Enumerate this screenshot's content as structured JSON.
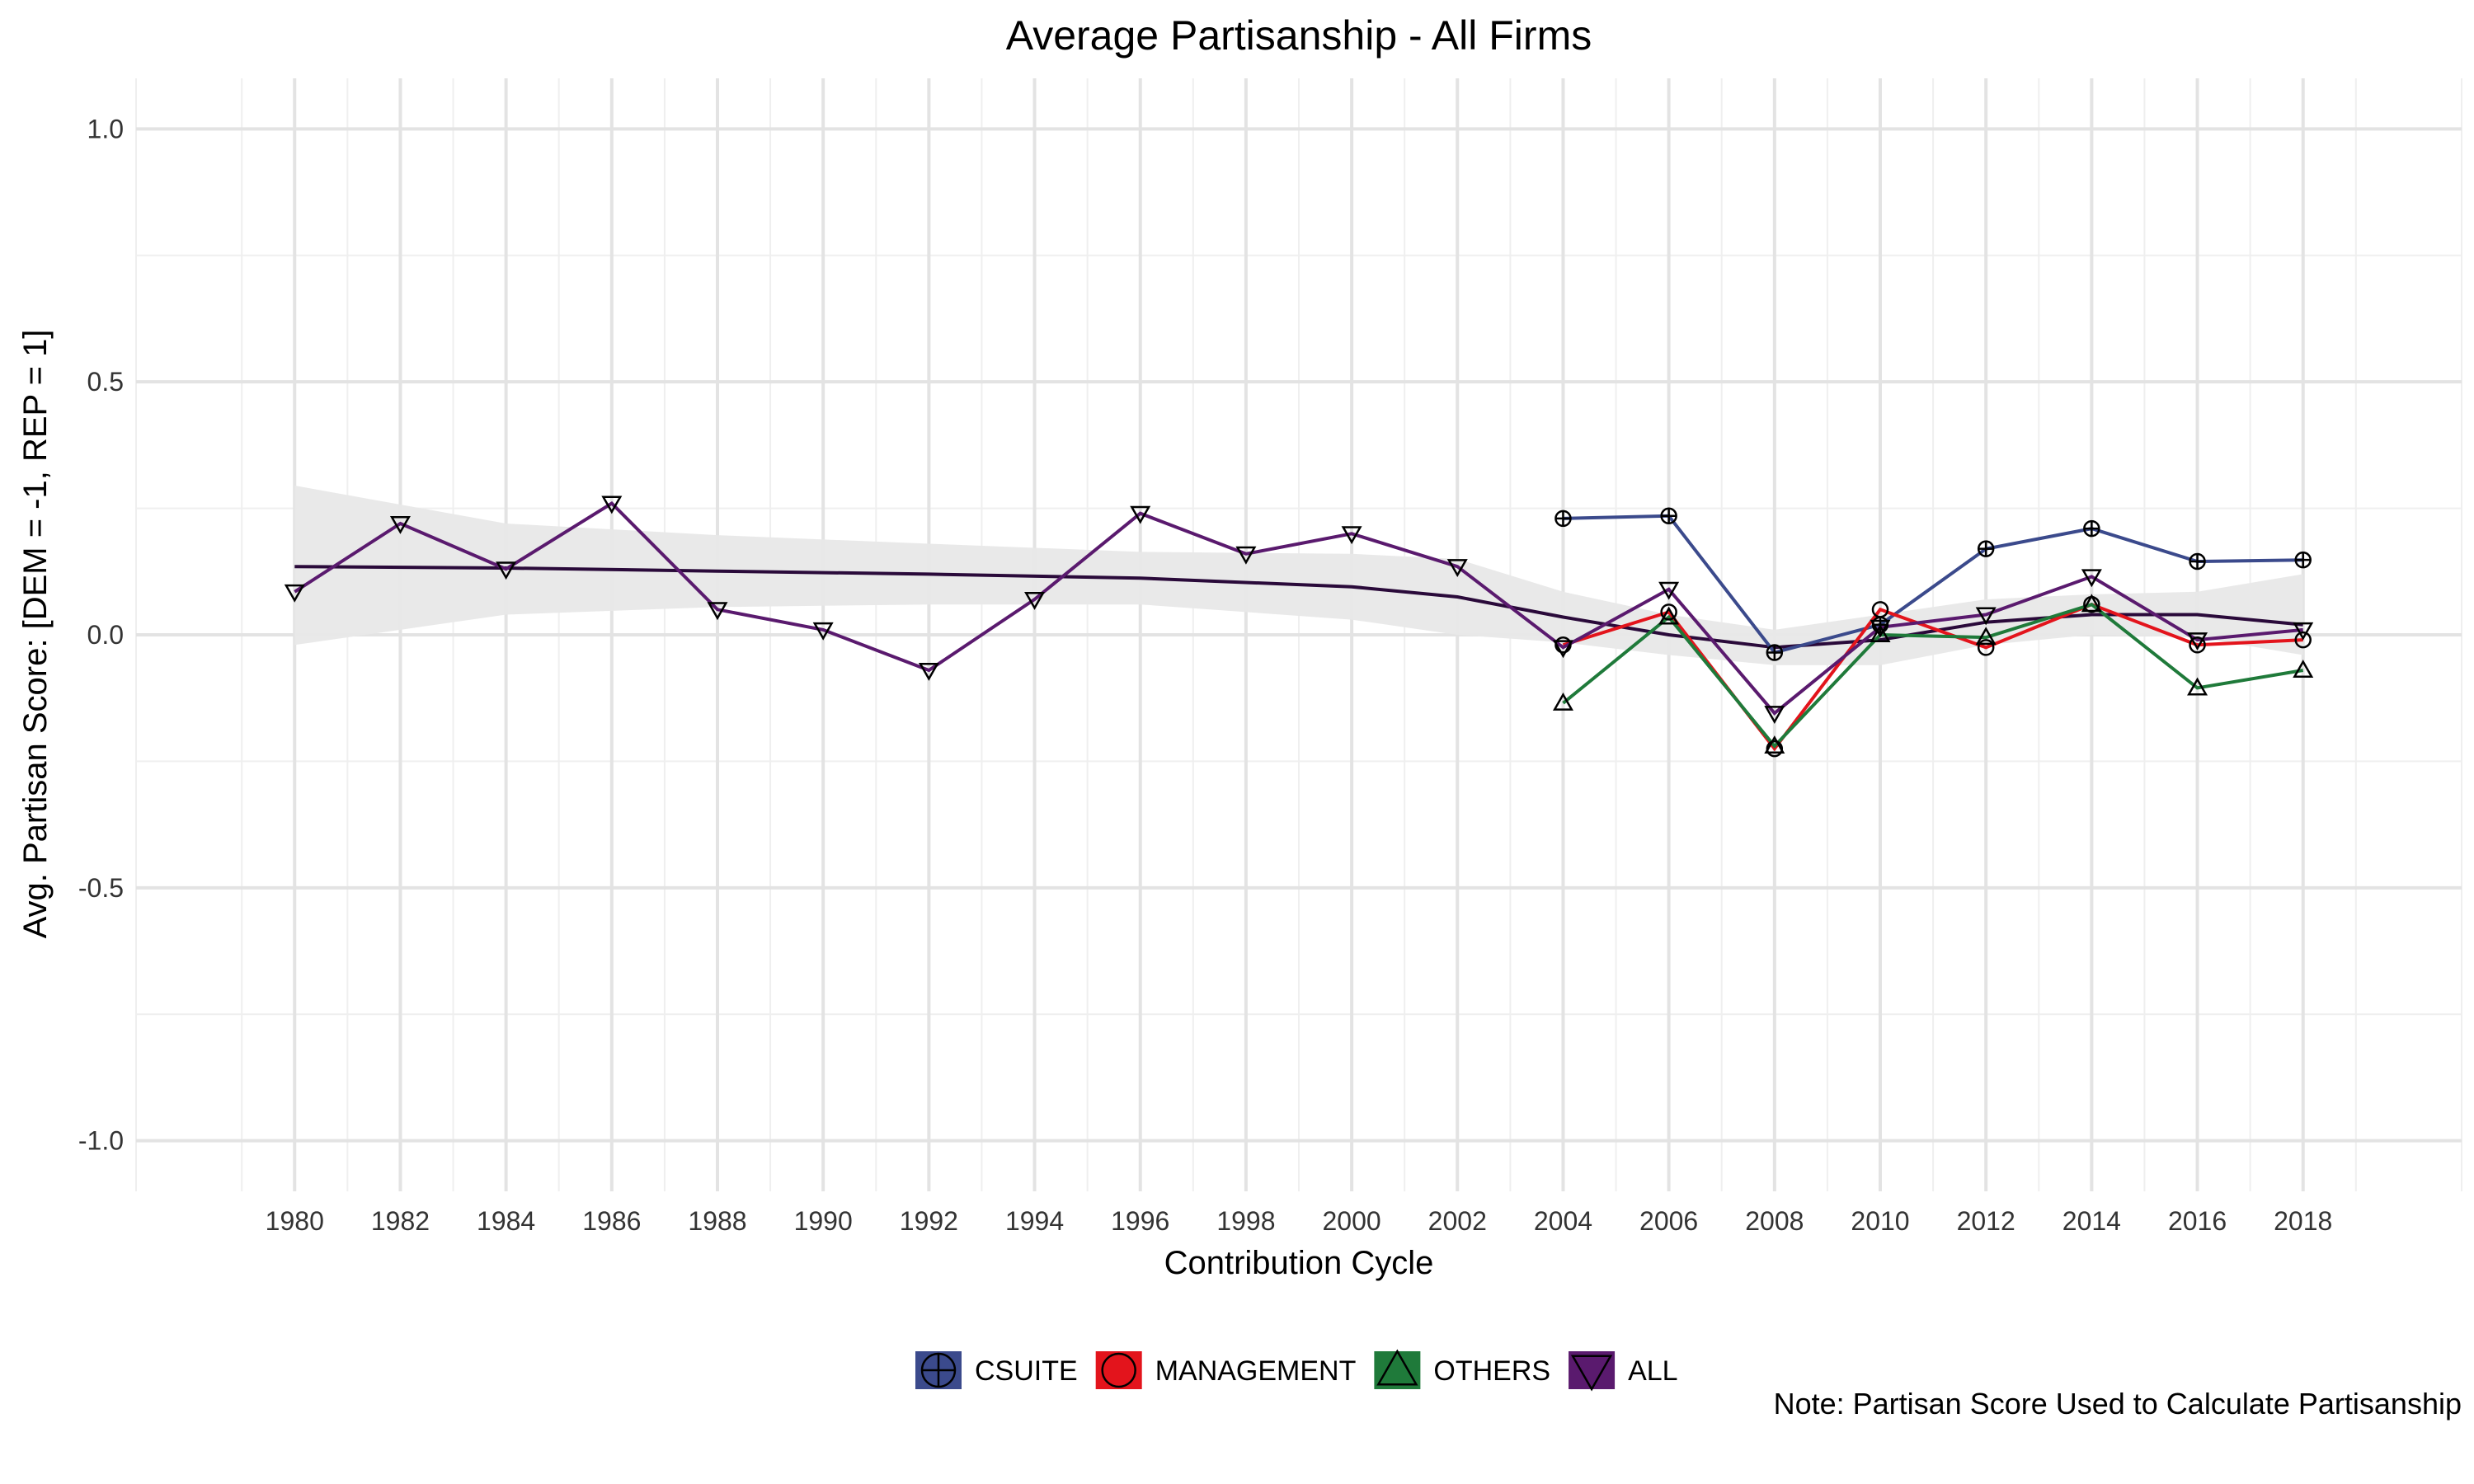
{
  "chart_data": {
    "type": "line",
    "title": "Average Partisanship - All Firms",
    "xlabel": "Contribution Cycle",
    "ylabel": "Avg. Partisan Score: [DEM = -1, REP = 1]",
    "caption": "Note: Partisan Score Used to Calculate Partisanship",
    "xlim": [
      1977,
      2021
    ],
    "ylim": [
      -1.1,
      1.1
    ],
    "x_ticks": [
      1980,
      1982,
      1984,
      1986,
      1988,
      1990,
      1992,
      1994,
      1996,
      1998,
      2000,
      2002,
      2004,
      2006,
      2008,
      2010,
      2012,
      2014,
      2016,
      2018
    ],
    "x_tick_labels": [
      "1980",
      "1982",
      "1984",
      "1986",
      "1988",
      "1990",
      "1992",
      "1994",
      "1996",
      "1998",
      "2000",
      "2002",
      "2004",
      "2006",
      "2008",
      "2010",
      "2012",
      "2014",
      "2016",
      "2018"
    ],
    "y_ticks": [
      -1.0,
      -0.5,
      0.0,
      0.5,
      1.0
    ],
    "y_tick_labels": [
      "-1.0",
      "-0.5",
      "0.0",
      "0.5",
      "1.0"
    ],
    "grid": true,
    "legend_position": "bottom",
    "series": [
      {
        "name": "CSUITE",
        "color": "#3B4A8C",
        "marker": "circle-plus",
        "x": [
          2004,
          2006,
          2008,
          2010,
          2012,
          2014,
          2016,
          2018
        ],
        "y": [
          0.23,
          0.235,
          -0.035,
          0.02,
          0.17,
          0.21,
          0.145,
          0.148
        ]
      },
      {
        "name": "MANAGEMENT",
        "color": "#E3141C",
        "marker": "circle",
        "x": [
          2004,
          2006,
          2008,
          2010,
          2012,
          2014,
          2016,
          2018
        ],
        "y": [
          -0.02,
          0.045,
          -0.225,
          0.05,
          -0.025,
          0.06,
          -0.02,
          -0.01
        ]
      },
      {
        "name": "OTHERS",
        "color": "#1F7A3A",
        "marker": "triangle-up",
        "x": [
          2004,
          2006,
          2008,
          2010,
          2012,
          2014,
          2016,
          2018
        ],
        "y": [
          -0.135,
          0.035,
          -0.22,
          0.0,
          -0.005,
          0.06,
          -0.105,
          -0.07
        ]
      },
      {
        "name": "ALL",
        "color": "#5A1A6E",
        "marker": "triangle-down",
        "x": [
          1980,
          1982,
          1984,
          1986,
          1988,
          1990,
          1992,
          1994,
          1996,
          1998,
          2000,
          2002,
          2004,
          2006,
          2008,
          2010,
          2012,
          2014,
          2016,
          2018
        ],
        "y": [
          0.085,
          0.22,
          0.13,
          0.26,
          0.05,
          0.01,
          -0.07,
          0.07,
          0.24,
          0.16,
          0.2,
          0.135,
          -0.025,
          0.09,
          -0.155,
          0.015,
          0.04,
          0.115,
          -0.01,
          0.01
        ]
      }
    ],
    "smooth": {
      "color": "#2A0A3A",
      "ribbon_color": "#E8E8E8",
      "x": [
        1980,
        1984,
        1988,
        1992,
        1996,
        2000,
        2002,
        2004,
        2006,
        2008,
        2010,
        2012,
        2014,
        2016,
        2018
      ],
      "y": [
        0.135,
        0.132,
        0.126,
        0.12,
        0.112,
        0.095,
        0.075,
        0.035,
        0.0,
        -0.025,
        -0.01,
        0.025,
        0.04,
        0.04,
        0.02
      ],
      "lower": [
        -0.02,
        0.04,
        0.055,
        0.06,
        0.06,
        0.03,
        0.0,
        -0.015,
        -0.04,
        -0.06,
        -0.06,
        -0.02,
        0.0,
        -0.005,
        -0.04
      ],
      "upper": [
        0.295,
        0.22,
        0.197,
        0.18,
        0.164,
        0.16,
        0.15,
        0.085,
        0.04,
        0.01,
        0.04,
        0.07,
        0.08,
        0.085,
        0.12
      ]
    }
  }
}
